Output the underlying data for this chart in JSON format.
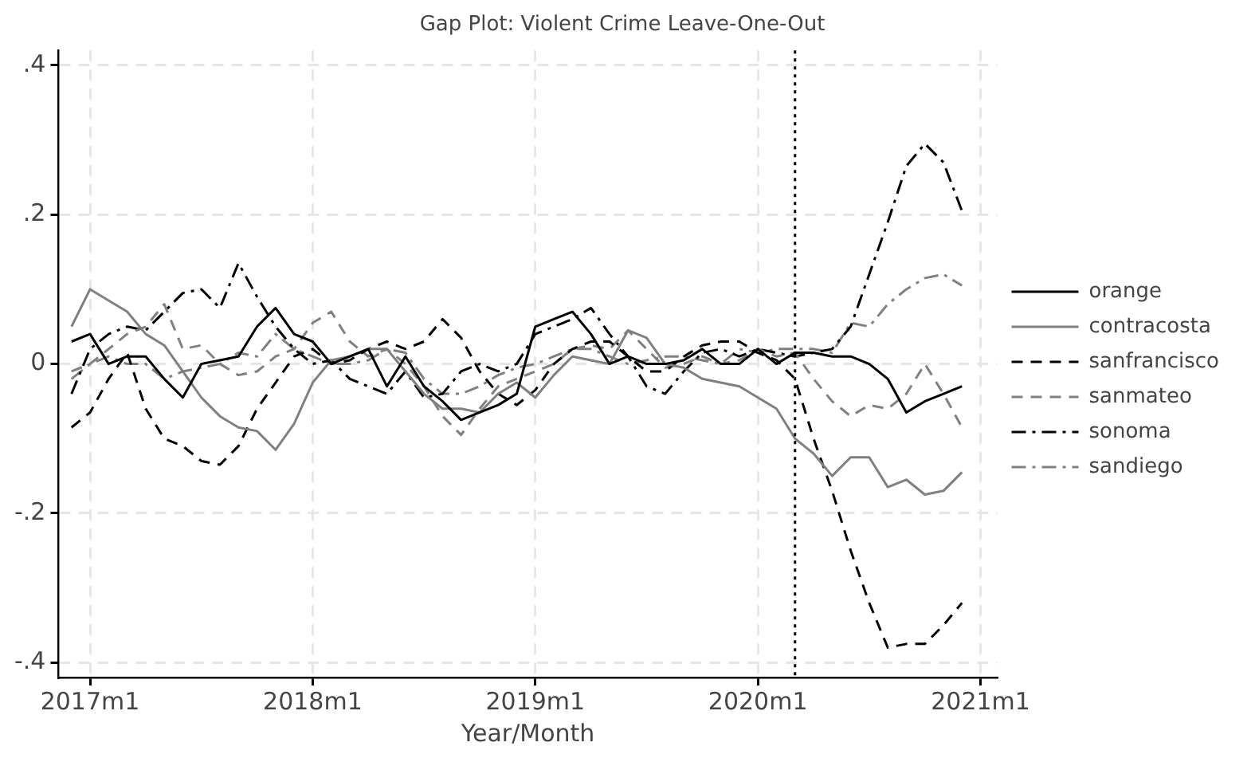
{
  "chart_data": {
    "type": "line",
    "title": "Gap Plot: Violent Crime Leave-One-Out",
    "xlabel": "Year/Month",
    "x": [
      "2016-12",
      "2017-01",
      "2017-02",
      "2017-03",
      "2017-04",
      "2017-05",
      "2017-06",
      "2017-07",
      "2017-08",
      "2017-09",
      "2017-10",
      "2017-11",
      "2017-12",
      "2018-01",
      "2018-02",
      "2018-03",
      "2018-04",
      "2018-05",
      "2018-06",
      "2018-07",
      "2018-08",
      "2018-09",
      "2018-10",
      "2018-11",
      "2018-12",
      "2019-01",
      "2019-02",
      "2019-03",
      "2019-04",
      "2019-05",
      "2019-06",
      "2019-07",
      "2019-08",
      "2019-09",
      "2019-10",
      "2019-11",
      "2019-12",
      "2020-01",
      "2020-02",
      "2020-03",
      "2020-04",
      "2020-05",
      "2020-06",
      "2020-07",
      "2020-08",
      "2020-09",
      "2020-10",
      "2020-11",
      "2020-12"
    ],
    "series": [
      {
        "name": "orange",
        "color": "#000000",
        "line_style": "solid",
        "values": [
          0.03,
          0.04,
          0,
          0.01,
          0.01,
          -0.02,
          -0.045,
          0,
          0.005,
          0.01,
          0.05,
          0.075,
          0.04,
          0.03,
          0,
          0.01,
          0.02,
          -0.03,
          0.01,
          -0.03,
          -0.05,
          -0.075,
          -0.065,
          -0.055,
          -0.04,
          0.05,
          0.06,
          0.07,
          0.04,
          0,
          0.01,
          0,
          0,
          0.005,
          0.02,
          0,
          0,
          0.02,
          0,
          0.015,
          0.015,
          0.01,
          0.01,
          0,
          -0.02,
          -0.065,
          -0.05,
          -0.04,
          -0.03
        ]
      },
      {
        "name": "contracosta",
        "color": "#808080",
        "line_style": "solid",
        "values": [
          0.05,
          0.1,
          0.085,
          0.07,
          0.04,
          0.025,
          -0.01,
          -0.045,
          -0.07,
          -0.085,
          -0.09,
          -0.115,
          -0.08,
          -0.025,
          0.005,
          0.01,
          0.02,
          0.02,
          -0.01,
          -0.04,
          -0.06,
          -0.06,
          -0.065,
          -0.04,
          -0.025,
          -0.045,
          -0.015,
          0.01,
          0.005,
          0,
          0.045,
          0.035,
          0,
          -0.005,
          -0.02,
          -0.025,
          -0.03,
          -0.045,
          -0.06,
          -0.1,
          -0.12,
          -0.15,
          -0.125,
          -0.125,
          -0.165,
          -0.155,
          -0.175,
          -0.17,
          -0.145
        ]
      },
      {
        "name": "sanfrancisco",
        "color": "#000000",
        "line_style": "dashed",
        "values": [
          -0.085,
          -0.065,
          -0.02,
          0.015,
          -0.06,
          -0.1,
          -0.11,
          -0.13,
          -0.135,
          -0.11,
          -0.06,
          -0.025,
          0.01,
          0.02,
          0,
          0.005,
          0.02,
          0.03,
          0.02,
          0.03,
          0.06,
          0.035,
          -0.01,
          -0.04,
          -0.055,
          -0.035,
          0,
          0.02,
          0.03,
          0.03,
          0.01,
          -0.01,
          -0.01,
          0.01,
          0.025,
          0.03,
          0.03,
          0.015,
          0.005,
          -0.02,
          -0.1,
          -0.17,
          -0.25,
          -0.32,
          -0.38,
          -0.375,
          -0.375,
          -0.35,
          -0.32
        ]
      },
      {
        "name": "sanmateo",
        "color": "#808080",
        "line_style": "dashed",
        "values": [
          -0.01,
          0,
          0.02,
          0.04,
          0.05,
          0.08,
          0.02,
          0.025,
          0,
          -0.015,
          -0.01,
          0.01,
          0.02,
          0.055,
          0.07,
          0.03,
          0.01,
          0.02,
          0,
          -0.03,
          -0.07,
          -0.095,
          -0.06,
          -0.03,
          -0.02,
          -0.01,
          0,
          0.02,
          0.025,
          0.02,
          0.045,
          0.02,
          -0.005,
          0,
          0.01,
          0,
          0.005,
          0.02,
          0.01,
          0.015,
          -0.02,
          -0.05,
          -0.07,
          -0.055,
          -0.06,
          -0.04,
          0,
          -0.04,
          -0.085
        ]
      },
      {
        "name": "sonoma",
        "color": "#000000",
        "line_style": "dashdot",
        "values": [
          -0.04,
          0.02,
          0.04,
          0.05,
          0.045,
          0.07,
          0.095,
          0.1,
          0.075,
          0.135,
          0.09,
          0.05,
          0.02,
          0,
          0.005,
          -0.02,
          -0.03,
          -0.04,
          -0.01,
          -0.045,
          -0.04,
          -0.01,
          0,
          -0.01,
          0,
          0.04,
          0.05,
          0.06,
          0.075,
          0.04,
          0.01,
          -0.03,
          -0.04,
          -0.01,
          0.015,
          0.02,
          0.01,
          0.02,
          0.015,
          0.01,
          0.015,
          0.02,
          0.05,
          0.12,
          0.19,
          0.265,
          0.295,
          0.27,
          0.205
        ]
      },
      {
        "name": "sandiego",
        "color": "#808080",
        "line_style": "dashdot",
        "values": [
          -0.02,
          0,
          0.01,
          0,
          0,
          -0.02,
          -0.01,
          -0.005,
          0,
          0.015,
          0.01,
          0.04,
          0.02,
          0.01,
          0,
          0,
          0.005,
          0.02,
          0.015,
          -0.02,
          -0.04,
          -0.04,
          -0.03,
          -0.015,
          -0.005,
          0,
          0.01,
          0.02,
          0.02,
          0.01,
          0,
          0.005,
          0.01,
          0.01,
          0.005,
          0,
          0.02,
          0.015,
          0.02,
          0.02,
          0.02,
          0.015,
          0.055,
          0.05,
          0.08,
          0.1,
          0.115,
          0.12,
          0.105
        ]
      }
    ],
    "xlim": [
      "2016-11-10",
      "2021-01-28"
    ],
    "xticks": [
      {
        "value": "2017-01",
        "label": "2017m1"
      },
      {
        "value": "2018-01",
        "label": "2018m1"
      },
      {
        "value": "2019-01",
        "label": "2019m1"
      },
      {
        "value": "2020-01",
        "label": "2020m1"
      },
      {
        "value": "2021-01",
        "label": "2021m1"
      }
    ],
    "ylim": [
      -0.42,
      0.42
    ],
    "yticks": [
      {
        "value": -0.4,
        "label": "-.4"
      },
      {
        "value": -0.2,
        "label": "-.2"
      },
      0,
      {
        "value": 0.2,
        "label": ".2"
      },
      {
        "value": 0.4,
        "label": ".4"
      }
    ],
    "ref_lines": [
      {
        "axis": "x",
        "value": "2020-03",
        "color": "#000000",
        "line_style": "dotted"
      }
    ],
    "grid": true,
    "legend": "right",
    "marker": "none"
  }
}
